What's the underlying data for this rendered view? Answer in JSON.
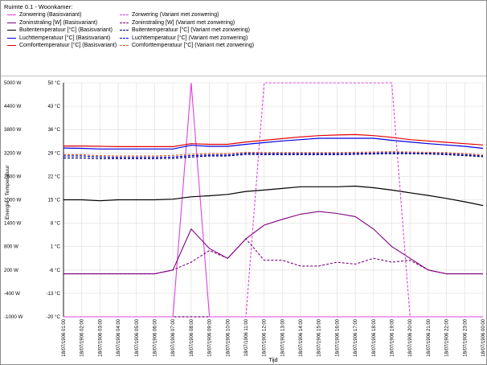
{
  "chart_title": "Ruimte 0.1 - Woonkamer:",
  "chart_data": {
    "type": "line",
    "xlabel": "Tijd",
    "ylabel": "Energie - Temperatuur",
    "x": [
      "18/07/1906 01:00",
      "18/07/1906 02:00",
      "18/07/1906 03:00",
      "18/07/1906 04:00",
      "18/07/1906 05:00",
      "18/07/1906 06:00",
      "18/07/1906 07:00",
      "18/07/1906 08:00",
      "18/07/1906 09:00",
      "18/07/1906 10:00",
      "18/07/1906 11:00",
      "18/07/1906 12:00",
      "18/07/1906 13:00",
      "18/07/1906 14:00",
      "18/07/1906 15:00",
      "18/07/1906 16:00",
      "18/07/1906 17:00",
      "18/07/1906 18:00",
      "18/07/1906 19:00",
      "18/07/1906 20:00",
      "18/07/1906 21:00",
      "18/07/1906 22:00",
      "18/07/1906 23:00",
      "18/07/1906 00:00"
    ],
    "y_left": {
      "unit": "W",
      "ticks": [
        "5000 W",
        "4400 W",
        "3800 W",
        "3200 W",
        "2600 W",
        "2000 W",
        "1400 W",
        "800 W",
        "200 W",
        "-400 W",
        "-1000 W"
      ],
      "ylim": [
        -1000,
        5000
      ]
    },
    "y_right": {
      "unit": "°C",
      "ticks": [
        "50 °C",
        "43 °C",
        "36 °C",
        "29 °C",
        "22 °C",
        "15 °C",
        "8 °C",
        "1 °C",
        "-6 °C",
        "-13 °C",
        "-20 °C"
      ],
      "ylim": [
        -20,
        50
      ]
    },
    "grid": true,
    "legend_position": "top-left",
    "series": [
      {
        "name": "Zonwering (Basisvariant)",
        "color": "#e040e0",
        "dash": "solid",
        "axis": "W",
        "values": [
          -1000,
          -1000,
          -1000,
          -1000,
          -1000,
          -1000,
          -1000,
          5000,
          -1000,
          -1000,
          -1000,
          -1000,
          -1000,
          -1000,
          -1000,
          -1000,
          -1000,
          -1000,
          -1000,
          -1000,
          -1000,
          -1000,
          -1000,
          -1000
        ]
      },
      {
        "name": "Zoninstraling [W] (Basisvariant)",
        "color": "#800080",
        "dash": "solid",
        "axis": "W",
        "values": [
          100,
          100,
          100,
          100,
          100,
          100,
          200,
          1250,
          750,
          500,
          1000,
          1350,
          1500,
          1630,
          1700,
          1650,
          1570,
          1250,
          800,
          500,
          200,
          100,
          100,
          100
        ]
      },
      {
        "name": "Buitentemperatuur [°C] (Basisvariant)",
        "color": "#000000",
        "dash": "solid",
        "axis": "°C",
        "values": [
          15,
          15,
          14.7,
          15,
          15,
          15,
          15.2,
          15.9,
          16.2,
          16.6,
          17.5,
          17.9,
          18.4,
          18.9,
          18.9,
          18.9,
          19.1,
          18.6,
          17.9,
          17.1,
          16.3,
          15.4,
          14.4,
          13.3
        ]
      },
      {
        "name": "Luchttemperatuur [°C] (Basisvariant)",
        "color": "#0000e0",
        "dash": "solid",
        "axis": "°C",
        "values": [
          30.5,
          30.4,
          30.2,
          30.2,
          30.2,
          30.2,
          30.2,
          31.3,
          31,
          31,
          31.6,
          32.1,
          32.6,
          33,
          33.4,
          33.4,
          33.4,
          33.4,
          32.8,
          32.3,
          31.8,
          31.4,
          31,
          30.4
        ]
      },
      {
        "name": "Comforttemperatuur [°C] (Basisvariant)",
        "color": "#e00000",
        "dash": "solid",
        "axis": "°C",
        "values": [
          31.1,
          31.1,
          31,
          30.9,
          30.9,
          30.9,
          30.9,
          31.8,
          31.6,
          31.6,
          32.3,
          32.8,
          33.3,
          33.8,
          34.2,
          34.4,
          34.5,
          34.2,
          33.7,
          33,
          32.6,
          32.2,
          31.8,
          31.4
        ]
      },
      {
        "name": "Zonwering (Variant met zonwering)",
        "color": "#e040e0",
        "dash": "dashed",
        "axis": "W",
        "values": [
          -1000,
          -1000,
          -1000,
          -1000,
          -1000,
          -1000,
          -1000,
          -1000,
          -1000,
          -1000,
          -1000,
          5000,
          5000,
          5000,
          5000,
          5000,
          5000,
          5000,
          5000,
          -1000,
          -1000,
          -1000,
          -1000,
          -1000
        ]
      },
      {
        "name": "Zoninstraling [W] (Variant met zonwering)",
        "color": "#800080",
        "dash": "dashed",
        "axis": "W",
        "values": [
          100,
          100,
          100,
          100,
          100,
          100,
          200,
          400,
          700,
          500,
          1000,
          450,
          450,
          300,
          300,
          400,
          350,
          500,
          400,
          450,
          200,
          100,
          100,
          100
        ]
      },
      {
        "name": "Buitentemperatuur [°C] (Variant met zonwering)",
        "color": "#000080",
        "dash": "dashed",
        "axis": "°C",
        "values": [
          27.5,
          27.5,
          27.3,
          27.3,
          27.3,
          27.3,
          27.4,
          27.8,
          28.1,
          28.1,
          28.6,
          28.5,
          28.5,
          28.5,
          28.5,
          28.5,
          28.6,
          28.7,
          28.8,
          28.8,
          28.7,
          28.5,
          28.2,
          27.9
        ]
      },
      {
        "name": "Luchttemperatuur [°C] (Variant met zonwering)",
        "color": "#0000e0",
        "dash": "dashed",
        "axis": "°C",
        "values": [
          28.1,
          28.1,
          27.8,
          27.7,
          27.7,
          27.7,
          27.8,
          28.2,
          28.4,
          28.4,
          28.9,
          28.8,
          28.8,
          28.8,
          28.8,
          28.8,
          28.9,
          29,
          29.1,
          29,
          29,
          28.8,
          28.5,
          28.1
        ]
      },
      {
        "name": "Comforttemperatuur [°C] (Variant met zonwering)",
        "color": "#e06030",
        "dash": "dashed",
        "axis": "°C",
        "values": [
          28.5,
          28.5,
          28.2,
          28.1,
          28.1,
          28.1,
          28.3,
          28.6,
          28.8,
          28.8,
          29.2,
          29.1,
          29.1,
          29.1,
          29.1,
          29.1,
          29.2,
          29.3,
          29.4,
          29.3,
          29.2,
          29.1,
          28.8,
          28.4
        ]
      }
    ]
  }
}
